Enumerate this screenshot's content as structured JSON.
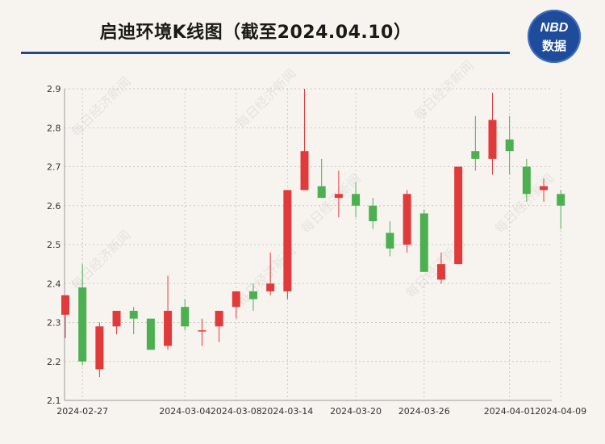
{
  "header": {
    "title": "启迪环境K线图（截至2024.04.10）",
    "logo_top": "NBD",
    "logo_bottom": "数据"
  },
  "watermark": "每日经济新闻",
  "colors": {
    "up": "#e03a3a",
    "down": "#4caf50",
    "rule": "#1f4a8c",
    "badge": "#1e4c9a"
  },
  "chart_data": {
    "type": "candlestick",
    "title": "启迪环境K线图（截至2024.04.10）",
    "ylim": [
      2.1,
      2.9
    ],
    "yticks": [
      "2.1",
      "2.2",
      "2.3",
      "2.4",
      "2.5",
      "2.6",
      "2.7",
      "2.8",
      "2.9"
    ],
    "xticks": [
      "2024-02-27",
      "2024-03-04",
      "2024-03-08",
      "2024-03-14",
      "2024-03-20",
      "2024-03-26",
      "2024-04-01",
      "2024-04-09"
    ],
    "grid": true,
    "candles": [
      {
        "open": 2.32,
        "close": 2.37,
        "high": 2.37,
        "low": 2.26
      },
      {
        "open": 2.39,
        "close": 2.2,
        "high": 2.45,
        "low": 2.19
      },
      {
        "open": 2.18,
        "close": 2.29,
        "high": 2.3,
        "low": 2.16
      },
      {
        "open": 2.29,
        "close": 2.33,
        "high": 2.33,
        "low": 2.27
      },
      {
        "open": 2.33,
        "close": 2.31,
        "high": 2.34,
        "low": 2.27
      },
      {
        "open": 2.31,
        "close": 2.23,
        "high": 2.31,
        "low": 2.23
      },
      {
        "open": 2.24,
        "close": 2.33,
        "high": 2.42,
        "low": 2.23
      },
      {
        "open": 2.34,
        "close": 2.29,
        "high": 2.36,
        "low": 2.28
      },
      {
        "open": 2.28,
        "close": 2.28,
        "high": 2.31,
        "low": 2.24
      },
      {
        "open": 2.29,
        "close": 2.33,
        "high": 2.33,
        "low": 2.25
      },
      {
        "open": 2.34,
        "close": 2.38,
        "high": 2.38,
        "low": 2.31
      },
      {
        "open": 2.38,
        "close": 2.36,
        "high": 2.4,
        "low": 2.33
      },
      {
        "open": 2.38,
        "close": 2.4,
        "high": 2.48,
        "low": 2.37
      },
      {
        "open": 2.38,
        "close": 2.64,
        "high": 2.64,
        "low": 2.36
      },
      {
        "open": 2.64,
        "close": 2.74,
        "high": 2.9,
        "low": 2.64
      },
      {
        "open": 2.65,
        "close": 2.62,
        "high": 2.72,
        "low": 2.62
      },
      {
        "open": 2.62,
        "close": 2.63,
        "high": 2.69,
        "low": 2.57
      },
      {
        "open": 2.63,
        "close": 2.6,
        "high": 2.66,
        "low": 2.57
      },
      {
        "open": 2.6,
        "close": 2.56,
        "high": 2.62,
        "low": 2.54
      },
      {
        "open": 2.53,
        "close": 2.49,
        "high": 2.56,
        "low": 2.47
      },
      {
        "open": 2.5,
        "close": 2.63,
        "high": 2.64,
        "low": 2.48
      },
      {
        "open": 2.58,
        "close": 2.43,
        "high": 2.59,
        "low": 2.43
      },
      {
        "open": 2.41,
        "close": 2.45,
        "high": 2.48,
        "low": 2.4
      },
      {
        "open": 2.45,
        "close": 2.7,
        "high": 2.7,
        "low": 2.45
      },
      {
        "open": 2.74,
        "close": 2.72,
        "high": 2.83,
        "low": 2.69
      },
      {
        "open": 2.72,
        "close": 2.82,
        "high": 2.89,
        "low": 2.68
      },
      {
        "open": 2.77,
        "close": 2.74,
        "high": 2.83,
        "low": 2.68
      },
      {
        "open": 2.7,
        "close": 2.63,
        "high": 2.72,
        "low": 2.61
      },
      {
        "open": 2.64,
        "close": 2.65,
        "high": 2.67,
        "low": 2.61
      },
      {
        "open": 2.63,
        "close": 2.6,
        "high": 2.64,
        "low": 2.54
      }
    ]
  }
}
